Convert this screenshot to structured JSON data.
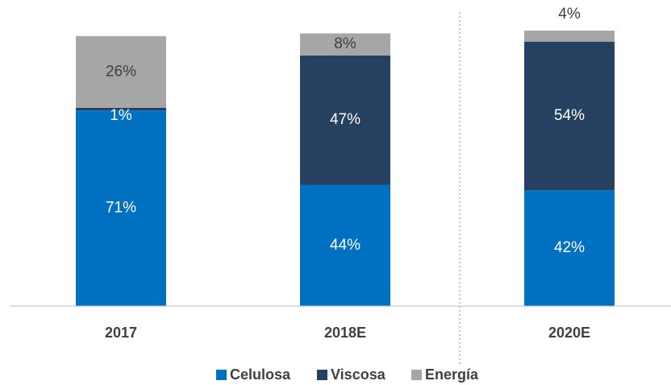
{
  "chart_data": {
    "type": "stacked_bar",
    "categories": [
      "2017",
      "2018E",
      "2020E"
    ],
    "series": [
      {
        "name": "Celulosa",
        "color": "#0070c0",
        "values": [
          71,
          44,
          42
        ],
        "value_labels": [
          "71%",
          "44%",
          "42%"
        ]
      },
      {
        "name": "Viscosa",
        "color": "#254061",
        "values": [
          1,
          47,
          54
        ],
        "value_labels": [
          "1%",
          "47%",
          "54%"
        ]
      },
      {
        "name": "Energía",
        "color": "#a6a6a6",
        "values": [
          26,
          8,
          4
        ],
        "value_labels": [
          "26%",
          "8%",
          "4%"
        ]
      }
    ],
    "ylim": [
      0,
      100
    ],
    "legend": "bottom"
  }
}
